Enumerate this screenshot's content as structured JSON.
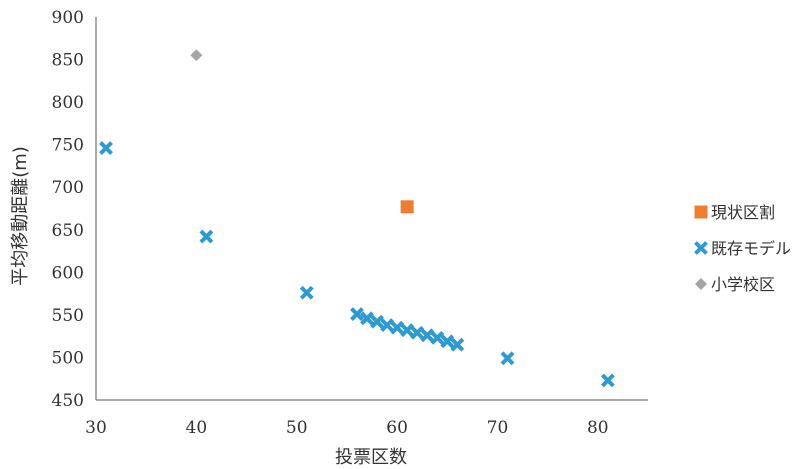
{
  "chart_data": {
    "type": "scatter",
    "title": "",
    "xlabel": "投票区数",
    "ylabel": "平均移動距離(m)",
    "xlim": [
      30,
      85
    ],
    "ylim": [
      450,
      900
    ],
    "x_ticks": [
      "30",
      "40",
      "50",
      "60",
      "70",
      "80"
    ],
    "y_ticks": [
      "450",
      "500",
      "550",
      "600",
      "650",
      "700",
      "750",
      "800",
      "850",
      "900"
    ],
    "grid": false,
    "legend_position": "right",
    "series": [
      {
        "name": "現状区割",
        "marker": "square",
        "color": "#ED7D31",
        "points": [
          [
            61,
            677
          ]
        ]
      },
      {
        "name": "既存モデル",
        "marker": "x",
        "color": "#2E9BD0",
        "points": [
          [
            31,
            746
          ],
          [
            41,
            642
          ],
          [
            51,
            576
          ],
          [
            56,
            551
          ],
          [
            57,
            546
          ],
          [
            58,
            542
          ],
          [
            59,
            538
          ],
          [
            60,
            535
          ],
          [
            61,
            532
          ],
          [
            62,
            529
          ],
          [
            63,
            526
          ],
          [
            64,
            523
          ],
          [
            65,
            519
          ],
          [
            66,
            515
          ],
          [
            71,
            499
          ],
          [
            81,
            473
          ]
        ]
      },
      {
        "name": "小学校区",
        "marker": "diamond",
        "color": "#A5A5A5",
        "points": [
          [
            40,
            855
          ]
        ]
      }
    ]
  }
}
